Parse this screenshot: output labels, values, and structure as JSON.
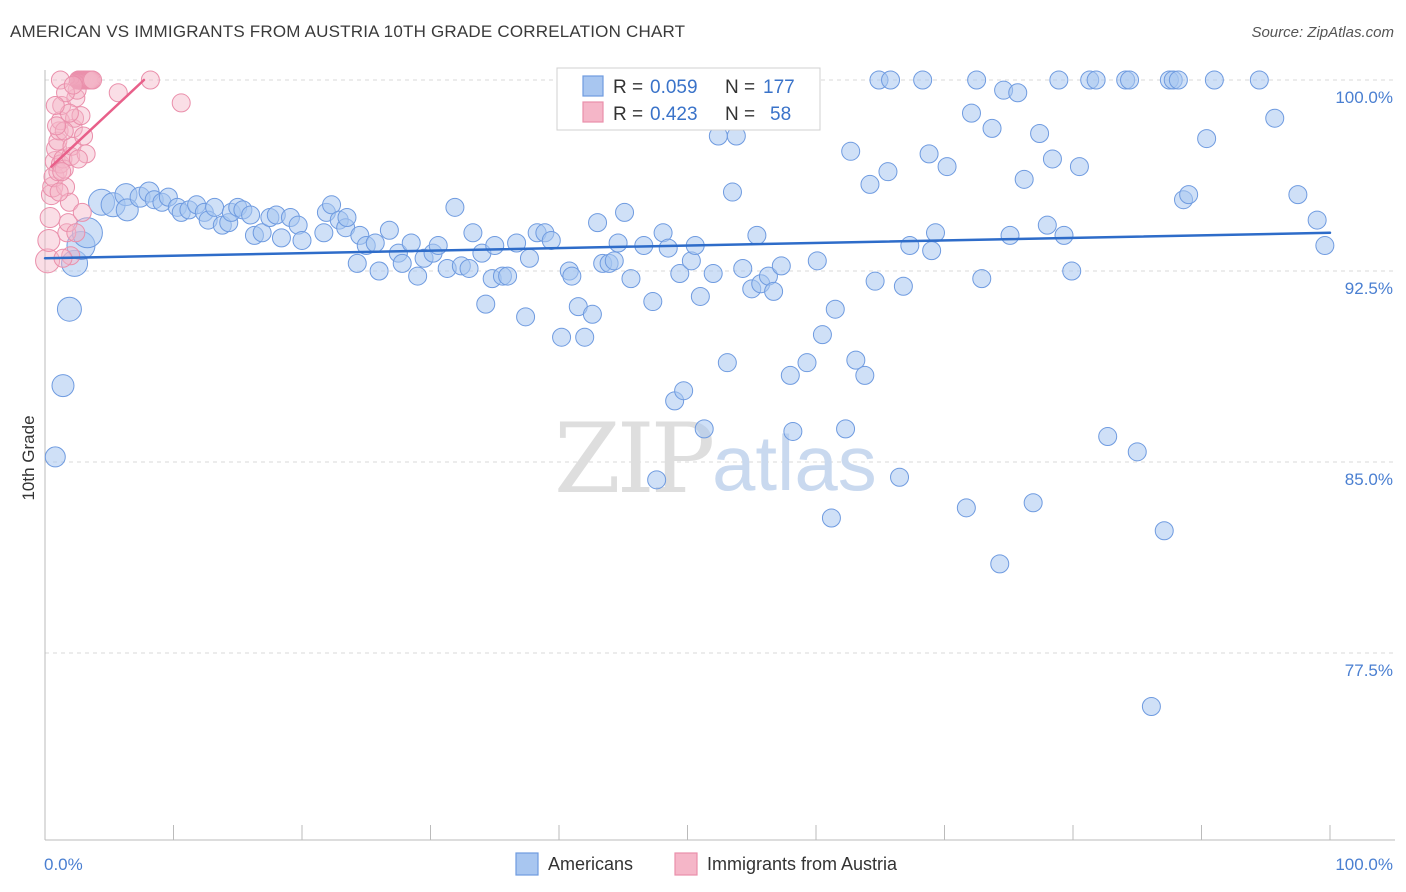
{
  "title": "AMERICAN VS IMMIGRANTS FROM AUSTRIA 10TH GRADE CORRELATION CHART",
  "source": "Source: ZipAtlas.com",
  "watermark": {
    "zip": "ZIP",
    "atlas": "atlas"
  },
  "colors": {
    "blue_fill": "#a8c6f0",
    "blue_stroke": "#6f9be0",
    "blue_line": "#2e6cc9",
    "pink_fill": "#f5b6c8",
    "pink_stroke": "#ea8fab",
    "pink_line": "#e8608a",
    "tick_label": "#4a7fd1",
    "grid": "#d8d8d8"
  },
  "legend": {
    "rows": [
      {
        "r_label": "R =",
        "r_value": "0.059",
        "n_label": "N =",
        "n_value": "177",
        "series": "Americans"
      },
      {
        "r_label": "R =",
        "r_value": "0.423",
        "n_label": "N =",
        "n_value": "58",
        "series": "Immigrants from Austria"
      }
    ]
  },
  "chart_data": {
    "type": "scatter",
    "ylabel": "10th Grade",
    "xlabel": "",
    "xlim": [
      0,
      100
    ],
    "ylim": [
      70,
      101.2
    ],
    "x_tick_labels": [
      "0.0%",
      "100.0%"
    ],
    "y_ticks": [
      {
        "value": 100,
        "label": "100.0%"
      },
      {
        "value": 92.5,
        "label": "92.5%"
      },
      {
        "value": 85,
        "label": "85.0%"
      },
      {
        "value": 77.5,
        "label": "77.5%"
      }
    ],
    "grid": "horizontal dashed",
    "legend_position": "top-center",
    "series": [
      {
        "name": "Americans",
        "trend": {
          "x": [
            0,
            100
          ],
          "y": [
            93.0,
            94.0
          ]
        },
        "points": [
          [
            0.8,
            85.2,
            10
          ],
          [
            1.4,
            88.0,
            11
          ],
          [
            1.9,
            91.0,
            12
          ],
          [
            2.3,
            92.8,
            13
          ],
          [
            2.8,
            93.5,
            14
          ],
          [
            3.3,
            94.0,
            15
          ],
          [
            4.4,
            95.2,
            13
          ],
          [
            5.3,
            95.1,
            12
          ],
          [
            6.3,
            95.5,
            11
          ],
          [
            6.4,
            94.9,
            11
          ],
          [
            7.4,
            95.4,
            10
          ],
          [
            8.1,
            95.6,
            10
          ],
          [
            8.5,
            95.3,
            9
          ],
          [
            9.1,
            95.2,
            9
          ],
          [
            9.6,
            95.4,
            9
          ],
          [
            10.3,
            95.0,
            9
          ],
          [
            10.6,
            94.8,
            9
          ],
          [
            11.2,
            94.9,
            9
          ],
          [
            11.8,
            95.1,
            9
          ],
          [
            12.4,
            94.8,
            9
          ],
          [
            12.7,
            94.5,
            9
          ],
          [
            13.2,
            95.0,
            9
          ],
          [
            13.8,
            94.3,
            9
          ],
          [
            14.3,
            94.4,
            9
          ],
          [
            14.5,
            94.8,
            9
          ],
          [
            15.0,
            95.0,
            9
          ],
          [
            15.4,
            94.9,
            9
          ],
          [
            16.0,
            94.7,
            9
          ],
          [
            16.3,
            93.9,
            9
          ],
          [
            16.9,
            94.0,
            9
          ],
          [
            17.5,
            94.6,
            9
          ],
          [
            18.0,
            94.7,
            9
          ],
          [
            18.4,
            93.8,
            9
          ],
          [
            19.1,
            94.6,
            9
          ],
          [
            19.7,
            94.3,
            9
          ],
          [
            20.0,
            93.7,
            9
          ],
          [
            21.7,
            94.0,
            9
          ],
          [
            21.9,
            94.8,
            9
          ],
          [
            22.3,
            95.1,
            9
          ],
          [
            22.9,
            94.5,
            9
          ],
          [
            23.4,
            94.2,
            9
          ],
          [
            23.5,
            94.6,
            9
          ],
          [
            24.3,
            92.8,
            9
          ],
          [
            24.5,
            93.9,
            9
          ],
          [
            25.0,
            93.5,
            9
          ],
          [
            25.7,
            93.6,
            9
          ],
          [
            26.0,
            92.5,
            9
          ],
          [
            26.8,
            94.1,
            9
          ],
          [
            27.5,
            93.2,
            9
          ],
          [
            27.8,
            92.8,
            9
          ],
          [
            28.5,
            93.6,
            9
          ],
          [
            29.0,
            92.3,
            9
          ],
          [
            29.5,
            93.0,
            9
          ],
          [
            30.2,
            93.2,
            9
          ],
          [
            30.6,
            93.5,
            9
          ],
          [
            31.3,
            92.6,
            9
          ],
          [
            31.9,
            95.0,
            9
          ],
          [
            32.4,
            92.7,
            9
          ],
          [
            33.0,
            92.6,
            9
          ],
          [
            33.3,
            94.0,
            9
          ],
          [
            34.0,
            93.2,
            9
          ],
          [
            34.8,
            92.2,
            9
          ],
          [
            34.3,
            91.2,
            9
          ],
          [
            35.0,
            93.5,
            9
          ],
          [
            35.6,
            92.3,
            9
          ],
          [
            36.0,
            92.3,
            9
          ],
          [
            36.7,
            93.6,
            9
          ],
          [
            37.4,
            90.7,
            9
          ],
          [
            37.7,
            93.0,
            9
          ],
          [
            38.3,
            94.0,
            9
          ],
          [
            38.9,
            94.0,
            9
          ],
          [
            39.4,
            93.7,
            9
          ],
          [
            40.2,
            89.9,
            9
          ],
          [
            40.8,
            92.5,
            9
          ],
          [
            41.0,
            92.3,
            9
          ],
          [
            41.5,
            91.1,
            9
          ],
          [
            42.0,
            89.9,
            9
          ],
          [
            42.6,
            90.8,
            9
          ],
          [
            43.0,
            94.4,
            9
          ],
          [
            43.4,
            92.8,
            9
          ],
          [
            43.9,
            92.8,
            9
          ],
          [
            44.3,
            92.9,
            9
          ],
          [
            44.6,
            93.6,
            9
          ],
          [
            45.1,
            94.8,
            9
          ],
          [
            45.6,
            92.2,
            9
          ],
          [
            46.6,
            93.5,
            9
          ],
          [
            47.3,
            91.3,
            9
          ],
          [
            47.6,
            84.3,
            9
          ],
          [
            48.1,
            94.0,
            9
          ],
          [
            48.5,
            93.4,
            9
          ],
          [
            49.0,
            87.4,
            9
          ],
          [
            49.4,
            92.4,
            9
          ],
          [
            49.7,
            87.8,
            9
          ],
          [
            50.3,
            92.9,
            9
          ],
          [
            50.6,
            93.5,
            9
          ],
          [
            51.0,
            91.5,
            9
          ],
          [
            51.3,
            86.3,
            9
          ],
          [
            52.0,
            92.4,
            9
          ],
          [
            52.4,
            97.8,
            9
          ],
          [
            53.1,
            88.9,
            9
          ],
          [
            53.5,
            95.6,
            9
          ],
          [
            53.8,
            97.8,
            9
          ],
          [
            54.3,
            92.6,
            9
          ],
          [
            55.0,
            91.8,
            9
          ],
          [
            55.4,
            93.9,
            9
          ],
          [
            55.7,
            92.0,
            9
          ],
          [
            56.3,
            92.3,
            9
          ],
          [
            56.7,
            91.7,
            9
          ],
          [
            57.3,
            92.7,
            9
          ],
          [
            58.0,
            88.4,
            9
          ],
          [
            58.2,
            86.2,
            9
          ],
          [
            59.3,
            88.9,
            9
          ],
          [
            60.1,
            92.9,
            9
          ],
          [
            60.5,
            90.0,
            9
          ],
          [
            61.2,
            82.8,
            9
          ],
          [
            61.5,
            91.0,
            9
          ],
          [
            62.3,
            86.3,
            9
          ],
          [
            62.7,
            97.2,
            9
          ],
          [
            63.1,
            89.0,
            9
          ],
          [
            63.8,
            88.4,
            9
          ],
          [
            64.2,
            95.9,
            9
          ],
          [
            64.6,
            92.1,
            9
          ],
          [
            64.9,
            100.0,
            9
          ],
          [
            65.6,
            96.4,
            9
          ],
          [
            65.8,
            100.0,
            9
          ],
          [
            66.5,
            84.4,
            9
          ],
          [
            66.8,
            91.9,
            9
          ],
          [
            67.3,
            93.5,
            9
          ],
          [
            68.3,
            100.0,
            9
          ],
          [
            68.8,
            97.1,
            9
          ],
          [
            69.0,
            93.3,
            9
          ],
          [
            69.3,
            94.0,
            9
          ],
          [
            70.2,
            96.6,
            9
          ],
          [
            71.7,
            83.2,
            9
          ],
          [
            72.1,
            98.7,
            9
          ],
          [
            72.5,
            100.0,
            9
          ],
          [
            72.9,
            92.2,
            9
          ],
          [
            73.7,
            98.1,
            9
          ],
          [
            74.3,
            81.0,
            9
          ],
          [
            74.6,
            99.6,
            9
          ],
          [
            75.1,
            93.9,
            9
          ],
          [
            75.7,
            99.5,
            9
          ],
          [
            76.2,
            96.1,
            9
          ],
          [
            76.9,
            83.4,
            9
          ],
          [
            77.4,
            97.9,
            9
          ],
          [
            78.0,
            94.3,
            9
          ],
          [
            78.4,
            96.9,
            9
          ],
          [
            78.9,
            100.0,
            9
          ],
          [
            79.3,
            93.9,
            9
          ],
          [
            79.9,
            92.5,
            9
          ],
          [
            80.5,
            96.6,
            9
          ],
          [
            81.3,
            100.0,
            9
          ],
          [
            81.8,
            100.0,
            9
          ],
          [
            82.7,
            86.0,
            9
          ],
          [
            84.1,
            100.0,
            9
          ],
          [
            84.4,
            100.0,
            9
          ],
          [
            85.0,
            85.4,
            9
          ],
          [
            86.1,
            75.4,
            9
          ],
          [
            87.1,
            82.3,
            9
          ],
          [
            87.5,
            100.0,
            9
          ],
          [
            87.8,
            100.0,
            9
          ],
          [
            88.2,
            100.0,
            9
          ],
          [
            88.6,
            95.3,
            9
          ],
          [
            89.0,
            95.5,
            9
          ],
          [
            90.4,
            97.7,
            9
          ],
          [
            91.0,
            100.0,
            9
          ],
          [
            94.5,
            100.0,
            9
          ],
          [
            95.7,
            98.5,
            9
          ],
          [
            97.5,
            95.5,
            9
          ],
          [
            99.0,
            94.5,
            9
          ],
          [
            99.6,
            93.5,
            9
          ],
          [
            59.4,
            100.0,
            9
          ]
        ]
      },
      {
        "name": "Immigrants from Austria",
        "trend": {
          "x": [
            0.5,
            7.7
          ],
          "y": [
            96.6,
            100.0
          ]
        },
        "points": [
          [
            0.2,
            92.9,
            12
          ],
          [
            0.3,
            93.7,
            11
          ],
          [
            0.4,
            94.6,
            10
          ],
          [
            0.5,
            95.5,
            10
          ],
          [
            0.6,
            95.8,
            10
          ],
          [
            0.7,
            96.2,
            10
          ],
          [
            0.8,
            96.8,
            10
          ],
          [
            0.9,
            97.3,
            10
          ],
          [
            1.0,
            97.6,
            9
          ],
          [
            1.1,
            98.0,
            9
          ],
          [
            1.2,
            98.4,
            9
          ],
          [
            1.3,
            99.0,
            9
          ],
          [
            1.0,
            96.4,
            9
          ],
          [
            1.2,
            96.7,
            9
          ],
          [
            1.4,
            96.9,
            9
          ],
          [
            1.5,
            96.5,
            9
          ],
          [
            1.6,
            95.8,
            9
          ],
          [
            1.7,
            94.0,
            9
          ],
          [
            1.8,
            94.4,
            9
          ],
          [
            1.9,
            95.2,
            9
          ],
          [
            2.0,
            97.0,
            9
          ],
          [
            2.1,
            97.4,
            9
          ],
          [
            2.2,
            98.1,
            9
          ],
          [
            2.3,
            98.5,
            9
          ],
          [
            2.4,
            99.3,
            9
          ],
          [
            2.5,
            99.6,
            9
          ],
          [
            2.6,
            100.0,
            9
          ],
          [
            2.7,
            100.0,
            9
          ],
          [
            2.8,
            100.0,
            9
          ],
          [
            2.9,
            100.0,
            9
          ],
          [
            3.0,
            100.0,
            9
          ],
          [
            3.1,
            100.0,
            9
          ],
          [
            3.2,
            100.0,
            9
          ],
          [
            3.3,
            100.0,
            9
          ],
          [
            3.4,
            100.0,
            9
          ],
          [
            3.5,
            100.0,
            9
          ],
          [
            3.6,
            100.0,
            9
          ],
          [
            3.7,
            100.0,
            9
          ],
          [
            1.2,
            100.0,
            9
          ],
          [
            1.6,
            99.5,
            9
          ],
          [
            2.2,
            99.8,
            9
          ],
          [
            2.8,
            98.6,
            9
          ],
          [
            3.0,
            97.8,
            9
          ],
          [
            3.2,
            97.1,
            9
          ],
          [
            2.6,
            96.9,
            9
          ],
          [
            1.9,
            98.7,
            9
          ],
          [
            1.5,
            98.0,
            9
          ],
          [
            1.3,
            96.4,
            9
          ],
          [
            1.1,
            95.6,
            9
          ],
          [
            0.9,
            98.2,
            9
          ],
          [
            0.8,
            99.0,
            9
          ],
          [
            2.4,
            94.0,
            9
          ],
          [
            2.0,
            93.1,
            9
          ],
          [
            1.4,
            93.0,
            9
          ],
          [
            5.7,
            99.5,
            9
          ],
          [
            8.2,
            100.0,
            9
          ],
          [
            10.6,
            99.1,
            9
          ],
          [
            2.9,
            94.8,
            9
          ]
        ]
      }
    ]
  },
  "bottom_legend": [
    {
      "label": "Americans"
    },
    {
      "label": "Immigrants from Austria"
    }
  ]
}
